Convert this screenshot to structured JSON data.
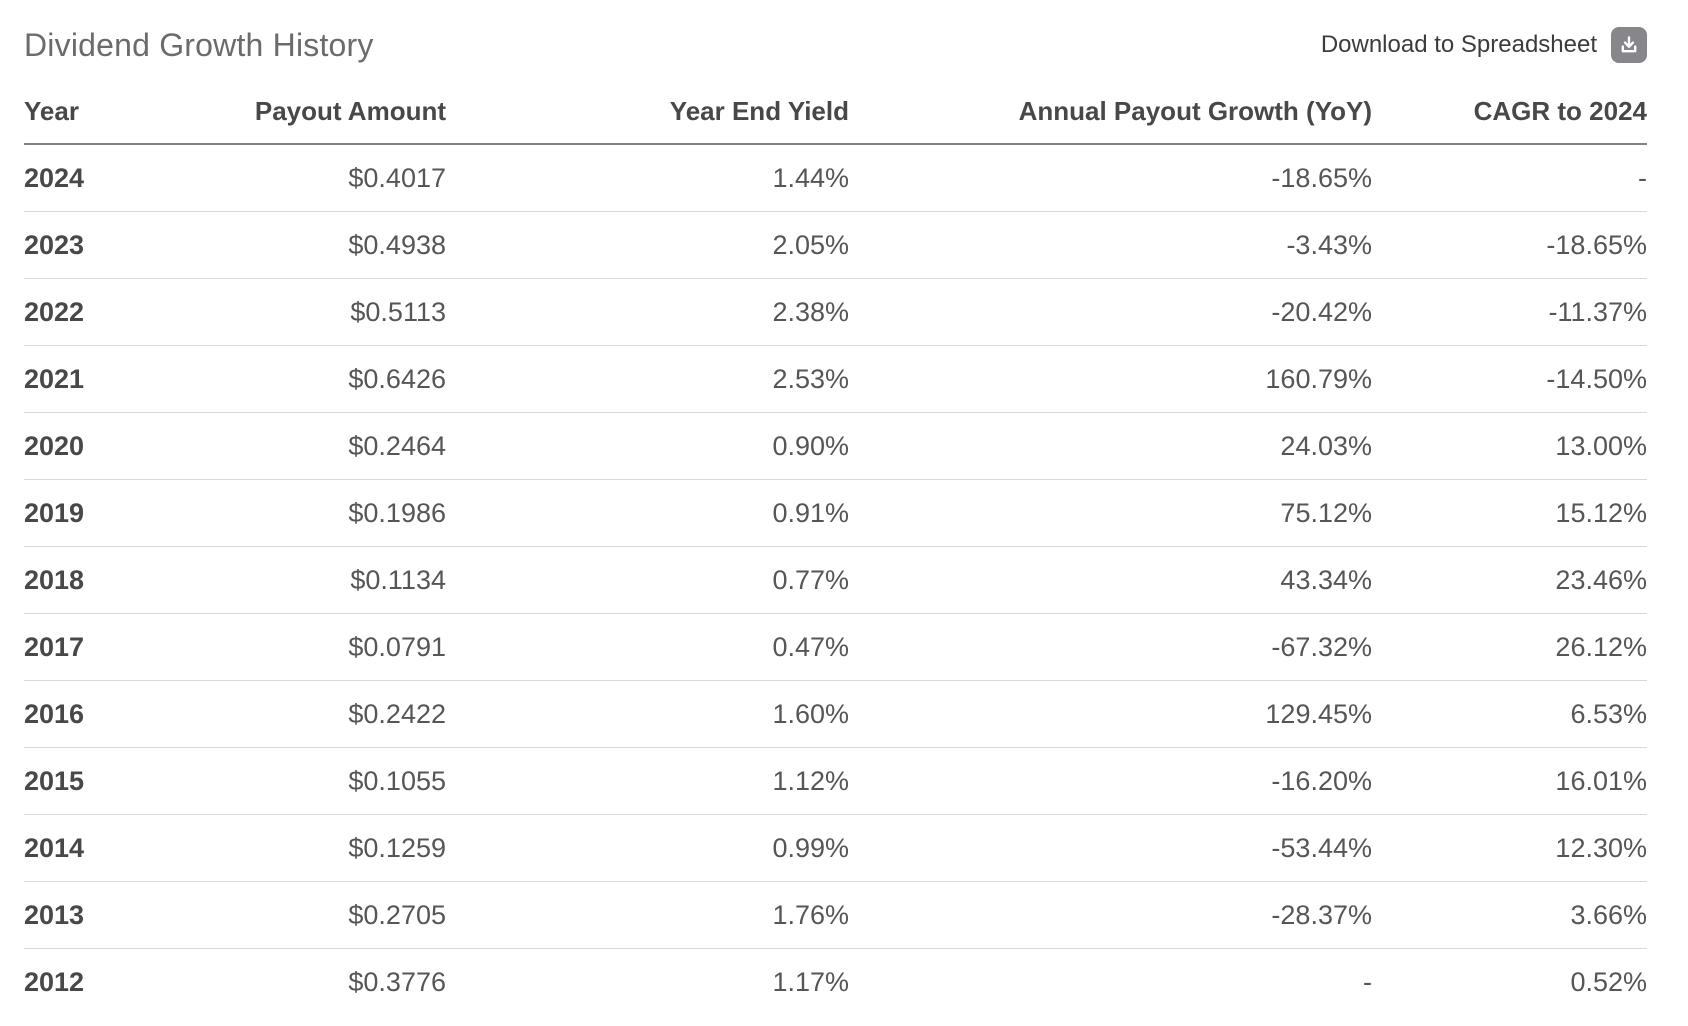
{
  "page": {
    "title": "Dividend Growth History",
    "download_label": "Download to Spreadsheet",
    "download_icon": "download-icon"
  },
  "table": {
    "columns": [
      "Year",
      "Payout Amount",
      "Year End Yield",
      "Annual Payout Growth (YoY)",
      "CAGR to 2024"
    ],
    "rows": [
      [
        "2024",
        "$0.4017",
        "1.44%",
        "-18.65%",
        "-"
      ],
      [
        "2023",
        "$0.4938",
        "2.05%",
        "-3.43%",
        "-18.65%"
      ],
      [
        "2022",
        "$0.5113",
        "2.38%",
        "-20.42%",
        "-11.37%"
      ],
      [
        "2021",
        "$0.6426",
        "2.53%",
        "160.79%",
        "-14.50%"
      ],
      [
        "2020",
        "$0.2464",
        "0.90%",
        "24.03%",
        "13.00%"
      ],
      [
        "2019",
        "$0.1986",
        "0.91%",
        "75.12%",
        "15.12%"
      ],
      [
        "2018",
        "$0.1134",
        "0.77%",
        "43.34%",
        "23.46%"
      ],
      [
        "2017",
        "$0.0791",
        "0.47%",
        "-67.32%",
        "26.12%"
      ],
      [
        "2016",
        "$0.2422",
        "1.60%",
        "129.45%",
        "6.53%"
      ],
      [
        "2015",
        "$0.1055",
        "1.12%",
        "-16.20%",
        "16.01%"
      ],
      [
        "2014",
        "$0.1259",
        "0.99%",
        "-53.44%",
        "12.30%"
      ],
      [
        "2013",
        "$0.2705",
        "1.76%",
        "-28.37%",
        "3.66%"
      ],
      [
        "2012",
        "$0.3776",
        "1.17%",
        "-",
        "0.52%"
      ]
    ]
  },
  "colors": {
    "title_text": "#6b6b6e",
    "download_text": "#3c3c3e",
    "icon_background": "#86868b",
    "icon_glyph": "#ffffff",
    "header_text": "#48484a",
    "cell_text": "#565659",
    "header_underline": "#7f8184",
    "row_divider": "#d9d9dd",
    "background": "#ffffff"
  }
}
